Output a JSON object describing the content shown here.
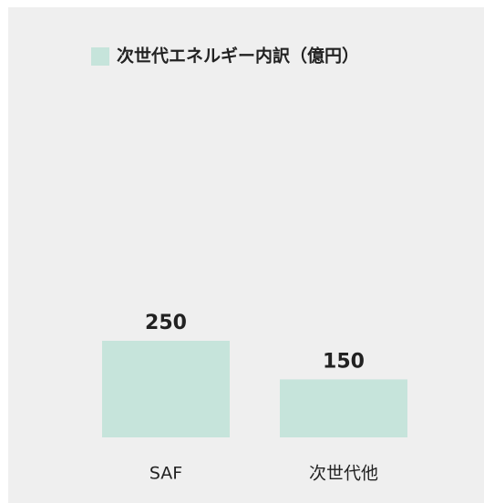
{
  "chart_data": {
    "type": "bar",
    "categories": [
      "SAF",
      "次世代他"
    ],
    "series": [
      {
        "name": "次世代エネルギー内訳（億円）",
        "color": "#c6e4db",
        "values": [
          250,
          150
        ]
      }
    ],
    "legend": "top"
  }
}
